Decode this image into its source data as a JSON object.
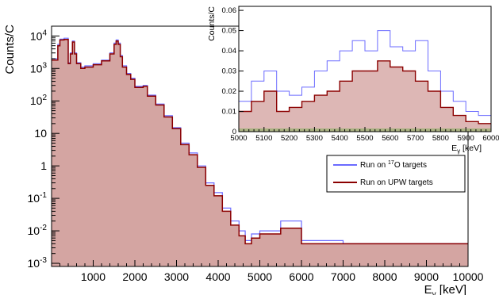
{
  "chart_data": [
    {
      "type": "line",
      "ylabel": "Counts/C",
      "xlabel_main": "E",
      "xlabel_sub": "γ",
      "xlabel_unit": " [keV]",
      "xlim": [
        0,
        10000
      ],
      "ylim": [
        0.0008,
        20000
      ],
      "yscale": "log",
      "x_ticks": [
        1000,
        2000,
        3000,
        4000,
        5000,
        6000,
        7000,
        8000,
        9000,
        10000
      ],
      "y_ticks": [
        {
          "value": 10000,
          "base": "10",
          "exp": "4"
        },
        {
          "value": 1000,
          "base": "10",
          "exp": "3"
        },
        {
          "value": 100,
          "base": "10",
          "exp": "2"
        },
        {
          "value": 10,
          "base": "10",
          "exp": ""
        },
        {
          "value": 1,
          "base": "1",
          "exp": ""
        },
        {
          "value": 0.1,
          "base": "10",
          "exp": "-1"
        },
        {
          "value": 0.01,
          "base": "10",
          "exp": "-2"
        },
        {
          "value": 0.001,
          "base": "10",
          "exp": "-3"
        }
      ],
      "highlight_range": [
        5000,
        6000
      ],
      "series": [
        {
          "name_prefix": "Run on ",
          "name_sup": "17",
          "name_suffix": "O targets",
          "color": "#6b6bff",
          "x": [
            0,
            150,
            200,
            300,
            400,
            450,
            500,
            550,
            600,
            700,
            800,
            1000,
            1200,
            1400,
            1500,
            1550,
            1600,
            1650,
            1700,
            1800,
            1900,
            2000,
            2200,
            2300,
            2500,
            2700,
            2900,
            3100,
            3300,
            3500,
            3700,
            3900,
            4100,
            4300,
            4500,
            4650,
            4800,
            5000,
            5500,
            6000,
            7000,
            8000,
            9000,
            10000
          ],
          "y": [
            2000,
            5500,
            8000,
            8500,
            1500,
            3000,
            7000,
            3000,
            1500,
            1100,
            1200,
            1400,
            1800,
            3000,
            6000,
            7500,
            6000,
            2500,
            1200,
            700,
            500,
            280,
            300,
            150,
            80,
            35,
            15,
            5,
            2.5,
            1,
            0.3,
            0.15,
            0.05,
            0.02,
            0.01,
            0.005,
            0.008,
            0.01,
            0.02,
            0.005,
            0.004,
            0.004,
            0.004,
            0.004
          ]
        },
        {
          "name": "Run on UPW targets",
          "color": "#8b0000",
          "x": [
            0,
            150,
            200,
            300,
            400,
            450,
            500,
            550,
            600,
            700,
            800,
            1000,
            1200,
            1400,
            1500,
            1550,
            1600,
            1650,
            1700,
            1800,
            1900,
            2000,
            2200,
            2300,
            2500,
            2700,
            2900,
            3100,
            3300,
            3500,
            3700,
            3900,
            4100,
            4300,
            4500,
            4650,
            4800,
            5000,
            5500,
            6000,
            7000,
            8000,
            9000,
            10000
          ],
          "y": [
            1800,
            5000,
            7500,
            7800,
            1400,
            2800,
            6500,
            2800,
            1400,
            1000,
            1100,
            1300,
            1700,
            2800,
            5500,
            7000,
            5500,
            2300,
            1100,
            650,
            460,
            260,
            280,
            140,
            75,
            32,
            14,
            4.5,
            2.2,
            0.9,
            0.25,
            0.12,
            0.04,
            0.015,
            0.007,
            0.004,
            0.006,
            0.008,
            0.012,
            0.004,
            0.004,
            0.004,
            0.004,
            0.004
          ]
        }
      ],
      "legend_position": "lower-right"
    },
    {
      "type": "line",
      "ylabel": "Counts/C",
      "xlabel_main": "E",
      "xlabel_sub": "γ",
      "xlabel_unit": " [keV]",
      "xlim": [
        5000,
        6000
      ],
      "ylim": [
        0,
        0.062
      ],
      "x_ticks": [
        5000,
        5100,
        5200,
        5300,
        5400,
        5500,
        5600,
        5700,
        5800,
        5900,
        6000
      ],
      "y_ticks": [
        0,
        0.01,
        0.02,
        0.03,
        0.04,
        0.05,
        0.06
      ],
      "y_tick_labels": [
        "0",
        "0.01",
        "0.02",
        "0.03",
        "0.04",
        "0.05",
        "0.06"
      ],
      "highlight_range": [
        5000,
        6000
      ],
      "series": [
        {
          "name": "17O targets",
          "color": "#6b6bff",
          "x": [
            5000,
            5050,
            5100,
            5150,
            5200,
            5250,
            5300,
            5350,
            5400,
            5450,
            5500,
            5550,
            5600,
            5650,
            5700,
            5750,
            5800,
            5850,
            5900,
            5950,
            6000
          ],
          "y": [
            0.015,
            0.025,
            0.03,
            0.02,
            0.018,
            0.022,
            0.03,
            0.035,
            0.04,
            0.045,
            0.04,
            0.05,
            0.042,
            0.04,
            0.045,
            0.03,
            0.02,
            0.015,
            0.01,
            0.008,
            0.005
          ]
        },
        {
          "name": "UPW targets",
          "color": "#8b0000",
          "x": [
            5000,
            5050,
            5100,
            5150,
            5200,
            5250,
            5300,
            5350,
            5400,
            5450,
            5500,
            5550,
            5600,
            5650,
            5700,
            5750,
            5800,
            5850,
            5900,
            5950,
            6000
          ],
          "y": [
            0.01,
            0.015,
            0.02,
            0.01,
            0.012,
            0.015,
            0.018,
            0.02,
            0.025,
            0.03,
            0.03,
            0.035,
            0.032,
            0.03,
            0.025,
            0.02,
            0.012,
            0.008,
            0.005,
            0.004,
            0.002
          ]
        }
      ]
    }
  ]
}
